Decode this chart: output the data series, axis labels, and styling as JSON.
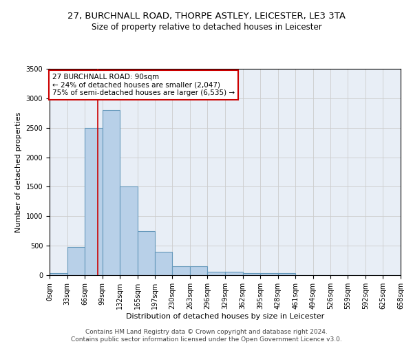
{
  "title1": "27, BURCHNALL ROAD, THORPE ASTLEY, LEICESTER, LE3 3TA",
  "title2": "Size of property relative to detached houses in Leicester",
  "xlabel": "Distribution of detached houses by size in Leicester",
  "ylabel": "Number of detached properties",
  "bar_left_edges": [
    0,
    33,
    66,
    99,
    132,
    165,
    197,
    230,
    263,
    296,
    329,
    362,
    395,
    428,
    461,
    494,
    526,
    559,
    592,
    625
  ],
  "bar_widths": [
    33,
    33,
    33,
    33,
    33,
    32,
    33,
    33,
    33,
    33,
    33,
    33,
    33,
    33,
    33,
    32,
    33,
    33,
    33,
    33
  ],
  "bar_heights": [
    30,
    480,
    2500,
    2800,
    1500,
    750,
    400,
    150,
    150,
    60,
    60,
    40,
    40,
    30,
    5,
    5,
    5,
    5,
    5,
    5
  ],
  "bar_color": "#b8d0e8",
  "bar_edge_color": "#6699bb",
  "bar_edge_width": 0.8,
  "xtick_labels": [
    "0sqm",
    "33sqm",
    "66sqm",
    "99sqm",
    "132sqm",
    "165sqm",
    "197sqm",
    "230sqm",
    "263sqm",
    "296sqm",
    "329sqm",
    "362sqm",
    "395sqm",
    "428sqm",
    "461sqm",
    "494sqm",
    "526sqm",
    "559sqm",
    "592sqm",
    "625sqm",
    "658sqm"
  ],
  "xtick_positions": [
    0,
    33,
    66,
    99,
    132,
    165,
    197,
    230,
    263,
    296,
    329,
    362,
    395,
    428,
    461,
    494,
    526,
    559,
    592,
    625,
    658
  ],
  "ylim": [
    0,
    3500
  ],
  "xlim": [
    0,
    658
  ],
  "property_size": 90,
  "red_line_color": "#cc0000",
  "annotation_text": "27 BURCHNALL ROAD: 90sqm\n← 24% of detached houses are smaller (2,047)\n75% of semi-detached houses are larger (6,535) →",
  "annotation_box_color": "#ffffff",
  "annotation_box_edgecolor": "#cc0000",
  "grid_color": "#cccccc",
  "background_color": "#e8eef6",
  "footer_text": "Contains HM Land Registry data © Crown copyright and database right 2024.\nContains public sector information licensed under the Open Government Licence v3.0.",
  "title1_fontsize": 9.5,
  "title2_fontsize": 8.5,
  "xlabel_fontsize": 8,
  "ylabel_fontsize": 8,
  "tick_fontsize": 7,
  "annotation_fontsize": 7.5,
  "footer_fontsize": 6.5
}
